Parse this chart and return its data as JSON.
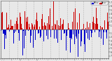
{
  "n_days": 365,
  "ylim": [
    -7.5,
    7.5
  ],
  "yticks": [
    7,
    6,
    5,
    4,
    3,
    2,
    1,
    -1,
    -2,
    -3,
    -4,
    -5,
    -6,
    -7
  ],
  "ytick_labels": [
    "7",
    "6",
    "5",
    "4",
    "3",
    "2",
    "1",
    "1",
    "2",
    "3",
    "4",
    "5",
    "6",
    "7"
  ],
  "color_above": "#cc0000",
  "color_below": "#0000cc",
  "background": "#e8e8e8",
  "bar_width": 1.0,
  "grid_color": "#aaaaaa",
  "grid_style": "--",
  "seed": 42,
  "n_grid_lines": 14,
  "legend_blue_label": "Below",
  "legend_red_label": "Above",
  "tick_label_fontsize": 2.0,
  "x_tick_fontsize": 1.5
}
